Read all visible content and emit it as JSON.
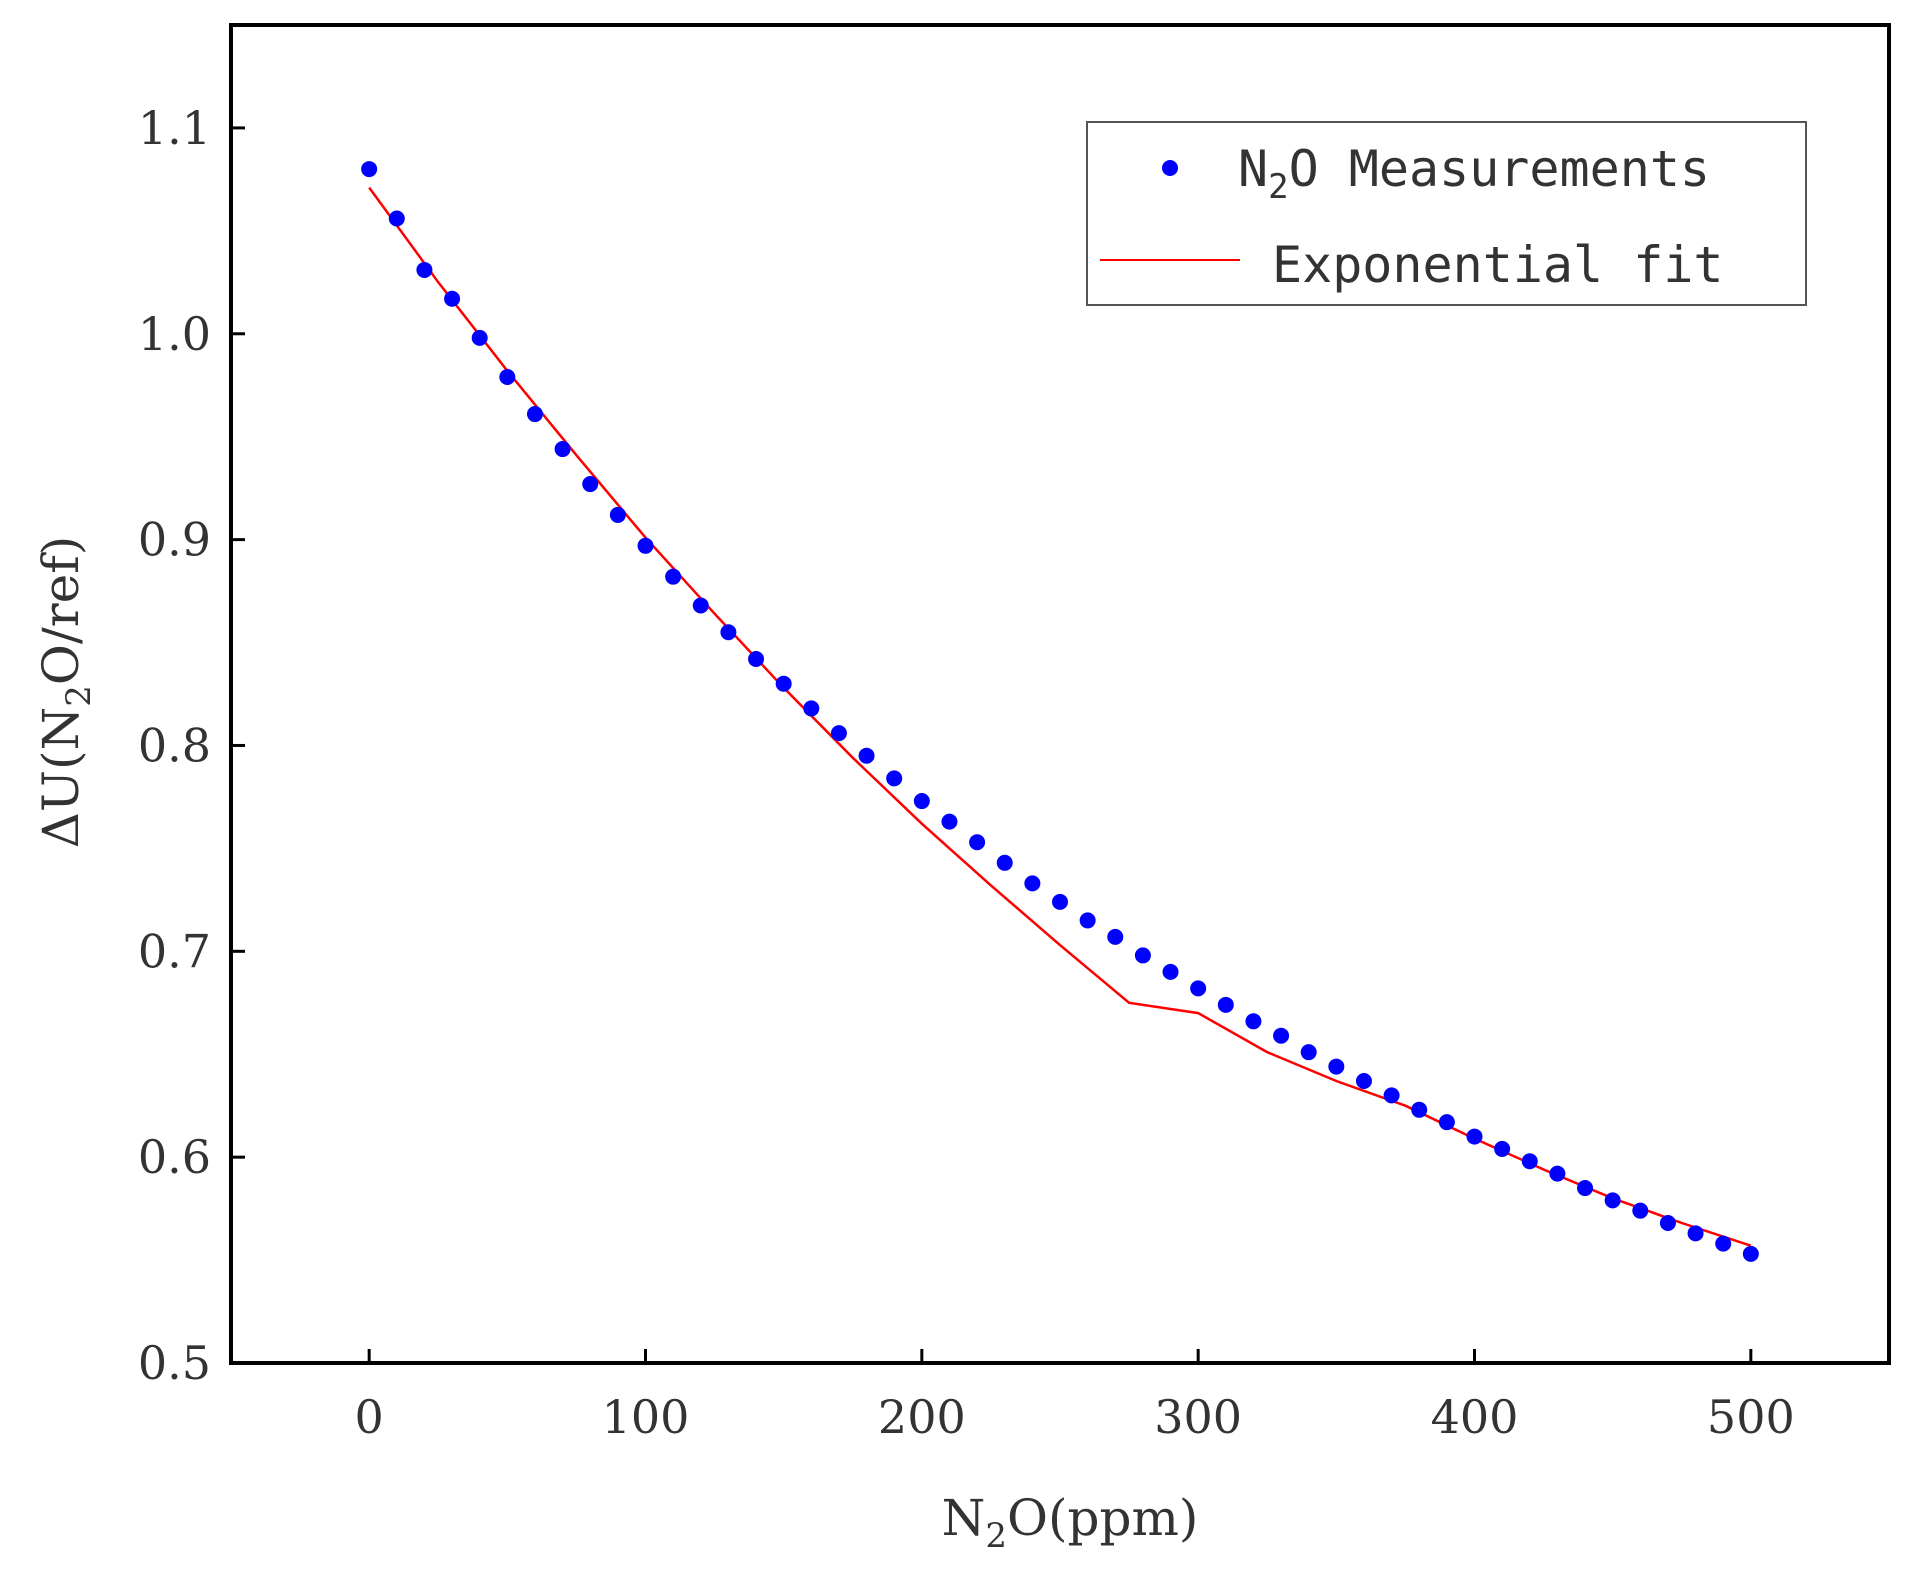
{
  "chart_data": {
    "type": "scatter",
    "title": "",
    "xlabel": {
      "prefix": "N",
      "sub": "2",
      "suffix": "O(ppm)"
    },
    "ylabel": {
      "prefix": "ΔU(N",
      "sub": "2",
      "suffix": "O/ref)"
    },
    "xlim": [
      -50,
      550
    ],
    "ylim": [
      0.5,
      1.15
    ],
    "xticks": [
      0,
      100,
      200,
      300,
      400,
      500
    ],
    "yticks": [
      0.5,
      0.6,
      0.7,
      0.8,
      0.9,
      1.0,
      1.1
    ],
    "xtick_labels": [
      "0",
      "100",
      "200",
      "300",
      "400",
      "500"
    ],
    "ytick_labels": [
      "0.5",
      "0.6",
      "0.7",
      "0.8",
      "0.9",
      "1.0",
      "1.1"
    ],
    "grid": false,
    "legend_position": "top-right",
    "series": [
      {
        "name": "N2O Measurements",
        "legend": {
          "prefix": "N",
          "sub": "2",
          "suffix": "O Measurements"
        },
        "kind": "scatter",
        "color": "#0000ff",
        "x": [
          0,
          10,
          20,
          30,
          40,
          50,
          60,
          70,
          80,
          90,
          100,
          110,
          120,
          130,
          140,
          150,
          160,
          170,
          180,
          190,
          200,
          210,
          220,
          230,
          240,
          250,
          260,
          270,
          280,
          290,
          300,
          310,
          320,
          330,
          340,
          350,
          360,
          370,
          380,
          390,
          400,
          410,
          420,
          430,
          440,
          450,
          460,
          470,
          480,
          490,
          500
        ],
        "y": [
          1.08,
          1.056,
          1.031,
          1.017,
          0.998,
          0.979,
          0.961,
          0.944,
          0.927,
          0.912,
          0.897,
          0.882,
          0.868,
          0.855,
          0.842,
          0.83,
          0.818,
          0.806,
          0.795,
          0.784,
          0.773,
          0.763,
          0.753,
          0.743,
          0.733,
          0.724,
          0.715,
          0.707,
          0.698,
          0.69,
          0.682,
          0.674,
          0.666,
          0.659,
          0.651,
          0.644,
          0.637,
          0.63,
          0.623,
          0.617,
          0.61,
          0.604,
          0.598,
          0.592,
          0.585,
          0.579,
          0.574,
          0.568,
          0.563,
          0.558,
          0.553
        ]
      },
      {
        "name": "Exponential fit",
        "legend": {
          "prefix": "Exponential fit",
          "sub": "",
          "suffix": ""
        },
        "kind": "line",
        "color": "#ff0000",
        "x": [
          0,
          25,
          50,
          75,
          100,
          125,
          150,
          175,
          200,
          225,
          250,
          275,
          300,
          325,
          350,
          375,
          400,
          425,
          450,
          475,
          500
        ],
        "y": [
          1.071,
          1.025,
          0.982,
          0.941,
          0.901,
          0.864,
          0.828,
          0.794,
          0.762,
          0.732,
          0.703,
          0.675,
          0.67,
          0.651,
          0.637,
          0.625,
          0.609,
          0.594,
          0.58,
          0.568,
          0.557
        ]
      }
    ]
  }
}
